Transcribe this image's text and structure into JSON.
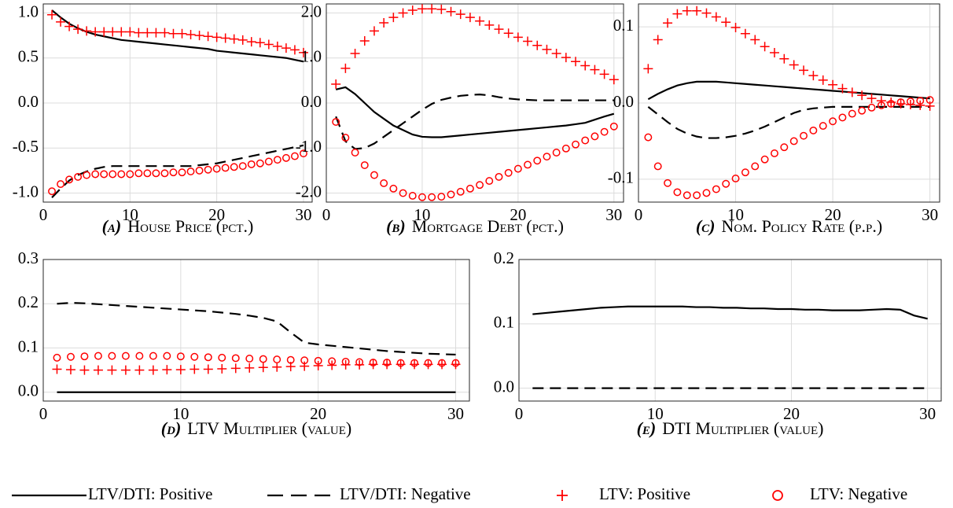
{
  "chart_data": [
    {
      "type": "line",
      "caption_label": "(a)",
      "title": "House Price (pct.)",
      "x": [
        1,
        2,
        3,
        4,
        5,
        6,
        7,
        8,
        9,
        10,
        11,
        12,
        13,
        14,
        15,
        16,
        17,
        18,
        19,
        20,
        21,
        22,
        23,
        24,
        25,
        26,
        27,
        28,
        29,
        30
      ],
      "xlim": [
        0,
        31
      ],
      "xticks": [
        0,
        10,
        20,
        30
      ],
      "ylim": [
        -1.1,
        1.1
      ],
      "yticks": [
        {
          "value": -1,
          "label": "-1.0"
        },
        -0.5,
        {
          "value": 0,
          "label": "0.0"
        },
        0.5,
        {
          "value": 1,
          "label": "1.0"
        }
      ],
      "grid": true,
      "series": [
        {
          "name": "LTV/DTI: Positive",
          "color": "#000000",
          "line": "solid",
          "values": [
            1.03,
            0.95,
            0.88,
            0.83,
            0.79,
            0.76,
            0.74,
            0.72,
            0.7,
            0.69,
            0.68,
            0.67,
            0.66,
            0.65,
            0.64,
            0.63,
            0.62,
            0.61,
            0.6,
            0.58,
            0.57,
            0.56,
            0.55,
            0.54,
            0.53,
            0.52,
            0.51,
            0.5,
            0.48,
            0.46
          ]
        },
        {
          "name": "LTV/DTI: Negative",
          "color": "#000000",
          "line": "dashed",
          "values": [
            -1.05,
            -0.95,
            -0.86,
            -0.8,
            -0.76,
            -0.73,
            -0.71,
            -0.7,
            -0.7,
            -0.7,
            -0.7,
            -0.7,
            -0.7,
            -0.7,
            -0.7,
            -0.7,
            -0.7,
            -0.69,
            -0.68,
            -0.67,
            -0.65,
            -0.63,
            -0.61,
            -0.59,
            -0.57,
            -0.55,
            -0.53,
            -0.51,
            -0.49,
            -0.47
          ]
        },
        {
          "name": "LTV: Positive",
          "color": "#ff0000",
          "marker": "plus",
          "values": [
            0.98,
            0.9,
            0.85,
            0.82,
            0.8,
            0.79,
            0.79,
            0.79,
            0.79,
            0.79,
            0.78,
            0.78,
            0.78,
            0.78,
            0.77,
            0.77,
            0.76,
            0.75,
            0.74,
            0.73,
            0.72,
            0.71,
            0.7,
            0.68,
            0.67,
            0.65,
            0.63,
            0.61,
            0.59,
            0.56
          ]
        },
        {
          "name": "LTV: Negative",
          "color": "#ff0000",
          "marker": "circle",
          "values": [
            -0.98,
            -0.9,
            -0.85,
            -0.82,
            -0.8,
            -0.79,
            -0.79,
            -0.79,
            -0.79,
            -0.79,
            -0.78,
            -0.78,
            -0.78,
            -0.78,
            -0.77,
            -0.77,
            -0.76,
            -0.75,
            -0.74,
            -0.73,
            -0.72,
            -0.71,
            -0.7,
            -0.68,
            -0.67,
            -0.65,
            -0.63,
            -0.61,
            -0.59,
            -0.56
          ]
        }
      ]
    },
    {
      "type": "line",
      "caption_label": "(b)",
      "title": "Mortgage Debt (pct.)",
      "x": [
        1,
        2,
        3,
        4,
        5,
        6,
        7,
        8,
        9,
        10,
        11,
        12,
        13,
        14,
        15,
        16,
        17,
        18,
        19,
        20,
        21,
        22,
        23,
        24,
        25,
        26,
        27,
        28,
        29,
        30
      ],
      "xlim": [
        0,
        31
      ],
      "xticks": [
        0,
        10,
        20,
        30
      ],
      "ylim": [
        -2.2,
        2.2
      ],
      "yticks": [
        {
          "value": -2,
          "label": "-2.0"
        },
        {
          "value": -1,
          "label": "-1.0"
        },
        {
          "value": 0,
          "label": "0.0"
        },
        {
          "value": 1,
          "label": "1.0"
        },
        {
          "value": 2,
          "label": "2.0"
        }
      ],
      "grid": true,
      "series": [
        {
          "name": "LTV/DTI: Positive",
          "color": "#000000",
          "line": "solid",
          "values": [
            0.3,
            0.35,
            0.2,
            0,
            -0.2,
            -0.35,
            -0.5,
            -0.6,
            -0.7,
            -0.75,
            -0.76,
            -0.76,
            -0.74,
            -0.72,
            -0.7,
            -0.68,
            -0.66,
            -0.64,
            -0.62,
            -0.6,
            -0.58,
            -0.56,
            -0.54,
            -0.52,
            -0.5,
            -0.47,
            -0.44,
            -0.37,
            -0.3,
            -0.24
          ]
        },
        {
          "name": "LTV/DTI: Negative",
          "color": "#000000",
          "line": "dashed",
          "values": [
            -0.3,
            -0.85,
            -1.02,
            -1.0,
            -0.9,
            -0.75,
            -0.6,
            -0.45,
            -0.3,
            -0.15,
            -0.02,
            0.07,
            0.12,
            0.16,
            0.18,
            0.19,
            0.17,
            0.13,
            0.1,
            0.08,
            0.07,
            0.06,
            0.06,
            0.06,
            0.06,
            0.06,
            0.06,
            0.06,
            0.06,
            0.06
          ]
        },
        {
          "name": "LTV: Positive",
          "color": "#ff0000",
          "marker": "plus",
          "values": [
            0.42,
            0.77,
            1.1,
            1.38,
            1.6,
            1.78,
            1.9,
            2.0,
            2.06,
            2.09,
            2.09,
            2.08,
            2.03,
            1.97,
            1.9,
            1.82,
            1.73,
            1.64,
            1.55,
            1.46,
            1.37,
            1.28,
            1.19,
            1.1,
            1.01,
            0.92,
            0.83,
            0.74,
            0.64,
            0.52
          ]
        },
        {
          "name": "LTV: Negative",
          "color": "#ff0000",
          "marker": "circle",
          "values": [
            -0.42,
            -0.77,
            -1.1,
            -1.38,
            -1.6,
            -1.78,
            -1.9,
            -2.0,
            -2.06,
            -2.09,
            -2.09,
            -2.08,
            -2.03,
            -1.97,
            -1.9,
            -1.82,
            -1.73,
            -1.64,
            -1.55,
            -1.46,
            -1.37,
            -1.28,
            -1.19,
            -1.1,
            -1.01,
            -0.92,
            -0.83,
            -0.74,
            -0.64,
            -0.52
          ]
        }
      ]
    },
    {
      "type": "line",
      "caption_label": "(c)",
      "title": "Nom. Policy Rate (p.p.)",
      "x": [
        1,
        2,
        3,
        4,
        5,
        6,
        7,
        8,
        9,
        10,
        11,
        12,
        13,
        14,
        15,
        16,
        17,
        18,
        19,
        20,
        21,
        22,
        23,
        24,
        25,
        26,
        27,
        28,
        29,
        30
      ],
      "xlim": [
        0,
        31
      ],
      "xticks": [
        0,
        10,
        20,
        30
      ],
      "ylim": [
        -0.13,
        0.13
      ],
      "yticks": [
        -0.1,
        {
          "value": 0,
          "label": "0.0"
        },
        0.1
      ],
      "grid": true,
      "series": [
        {
          "name": "LTV/DTI: Positive",
          "color": "#000000",
          "line": "solid",
          "values": [
            0.005,
            0.012,
            0.018,
            0.023,
            0.026,
            0.028,
            0.028,
            0.028,
            0.027,
            0.026,
            0.025,
            0.024,
            0.023,
            0.022,
            0.021,
            0.02,
            0.019,
            0.018,
            0.017,
            0.016,
            0.015,
            0.014,
            0.013,
            0.012,
            0.011,
            0.01,
            0.009,
            0.008,
            0.007,
            0.006
          ]
        },
        {
          "name": "LTV/DTI: Negative",
          "color": "#000000",
          "line": "dashed",
          "values": [
            -0.005,
            -0.015,
            -0.025,
            -0.034,
            -0.04,
            -0.044,
            -0.046,
            -0.046,
            -0.045,
            -0.043,
            -0.04,
            -0.036,
            -0.031,
            -0.025,
            -0.019,
            -0.013,
            -0.009,
            -0.007,
            -0.006,
            -0.005,
            -0.005,
            -0.005,
            -0.005,
            -0.005,
            -0.005,
            -0.005,
            -0.005,
            -0.005,
            -0.005,
            -0.005
          ]
        },
        {
          "name": "LTV: Positive",
          "color": "#ff0000",
          "marker": "plus",
          "values": [
            0.045,
            0.083,
            0.105,
            0.117,
            0.121,
            0.121,
            0.118,
            0.113,
            0.106,
            0.099,
            0.091,
            0.083,
            0.074,
            0.066,
            0.058,
            0.05,
            0.043,
            0.036,
            0.03,
            0.024,
            0.019,
            0.014,
            0.01,
            0.006,
            0.003,
            0.001,
            -0.001,
            -0.002,
            -0.003,
            -0.004
          ]
        },
        {
          "name": "LTV: Negative",
          "color": "#ff0000",
          "marker": "circle",
          "values": [
            -0.045,
            -0.083,
            -0.105,
            -0.117,
            -0.121,
            -0.121,
            -0.118,
            -0.113,
            -0.106,
            -0.099,
            -0.091,
            -0.083,
            -0.074,
            -0.066,
            -0.058,
            -0.05,
            -0.043,
            -0.036,
            -0.03,
            -0.024,
            -0.019,
            -0.014,
            -0.01,
            -0.006,
            -0.003,
            -0.001,
            0.001,
            0.002,
            0.003,
            0.004
          ]
        }
      ]
    },
    {
      "type": "line",
      "caption_label": "(d)",
      "title": "LTV Multiplier (value)",
      "x": [
        1,
        2,
        3,
        4,
        5,
        6,
        7,
        8,
        9,
        10,
        11,
        12,
        13,
        14,
        15,
        16,
        17,
        18,
        19,
        20,
        21,
        22,
        23,
        24,
        25,
        26,
        27,
        28,
        29,
        30
      ],
      "xlim": [
        0,
        31
      ],
      "xticks": [
        0,
        10,
        20,
        30
      ],
      "ylim": [
        -0.02,
        0.3
      ],
      "yticks": [
        {
          "value": 0,
          "label": "0.0"
        },
        0.1,
        0.2,
        0.3
      ],
      "grid": true,
      "series": [
        {
          "name": "LTV/DTI: Positive",
          "color": "#000000",
          "line": "solid",
          "values": [
            0,
            0,
            0,
            0,
            0,
            0,
            0,
            0,
            0,
            0,
            0,
            0,
            0,
            0,
            0,
            0,
            0,
            0,
            0,
            0,
            0,
            0,
            0,
            0,
            0,
            0,
            0,
            0,
            0,
            0
          ]
        },
        {
          "name": "LTV/DTI: Negative",
          "color": "#000000",
          "line": "dashed",
          "values": [
            0.2,
            0.202,
            0.201,
            0.199,
            0.197,
            0.195,
            0.193,
            0.191,
            0.189,
            0.187,
            0.185,
            0.183,
            0.18,
            0.177,
            0.173,
            0.168,
            0.16,
            0.135,
            0.112,
            0.108,
            0.105,
            0.102,
            0.099,
            0.096,
            0.093,
            0.091,
            0.089,
            0.087,
            0.086,
            0.085
          ]
        },
        {
          "name": "LTV: Positive",
          "color": "#ff0000",
          "marker": "plus",
          "values": [
            0.052,
            0.051,
            0.05,
            0.05,
            0.05,
            0.05,
            0.05,
            0.05,
            0.051,
            0.051,
            0.052,
            0.052,
            0.053,
            0.054,
            0.055,
            0.056,
            0.057,
            0.058,
            0.059,
            0.06,
            0.061,
            0.062,
            0.062,
            0.063,
            0.063,
            0.063,
            0.063,
            0.063,
            0.063,
            0.063
          ]
        },
        {
          "name": "LTV: Negative",
          "color": "#ff0000",
          "marker": "circle",
          "values": [
            0.078,
            0.08,
            0.081,
            0.082,
            0.082,
            0.082,
            0.082,
            0.082,
            0.082,
            0.081,
            0.08,
            0.079,
            0.078,
            0.077,
            0.076,
            0.075,
            0.074,
            0.073,
            0.072,
            0.071,
            0.07,
            0.069,
            0.068,
            0.067,
            0.067,
            0.066,
            0.066,
            0.066,
            0.066,
            0.066
          ]
        }
      ]
    },
    {
      "type": "line",
      "caption_label": "(e)",
      "title": "DTI Multiplier (value)",
      "x": [
        1,
        2,
        3,
        4,
        5,
        6,
        7,
        8,
        9,
        10,
        11,
        12,
        13,
        14,
        15,
        16,
        17,
        18,
        19,
        20,
        21,
        22,
        23,
        24,
        25,
        26,
        27,
        28,
        29,
        30
      ],
      "xlim": [
        0,
        31
      ],
      "xticks": [
        0,
        10,
        20,
        30
      ],
      "ylim": [
        -0.02,
        0.2
      ],
      "yticks": [
        {
          "value": 0,
          "label": "0.0"
        },
        0.1,
        0.2
      ],
      "grid": true,
      "series": [
        {
          "name": "LTV/DTI: Positive",
          "color": "#000000",
          "line": "solid",
          "values": [
            0.115,
            0.117,
            0.119,
            0.121,
            0.123,
            0.125,
            0.126,
            0.127,
            0.127,
            0.127,
            0.127,
            0.127,
            0.126,
            0.126,
            0.125,
            0.125,
            0.124,
            0.124,
            0.123,
            0.123,
            0.122,
            0.122,
            0.121,
            0.121,
            0.121,
            0.122,
            0.123,
            0.122,
            0.113,
            0.108
          ]
        },
        {
          "name": "LTV/DTI: Negative",
          "color": "#000000",
          "line": "dashed",
          "values": [
            0,
            0,
            0,
            0,
            0,
            0,
            0,
            0,
            0,
            0,
            0,
            0,
            0,
            0,
            0,
            0,
            0,
            0,
            0,
            0,
            0,
            0,
            0,
            0,
            0,
            0,
            0,
            0,
            0,
            0
          ]
        }
      ]
    }
  ]
}
